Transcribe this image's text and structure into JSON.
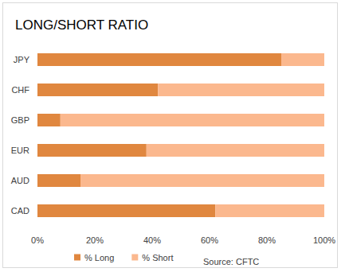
{
  "chart_data": {
    "type": "bar",
    "title": "LONG/SHORT RATIO",
    "orientation": "horizontal",
    "stacked": true,
    "categories": [
      "JPY",
      "CHF",
      "GBP",
      "EUR",
      "AUD",
      "CAD"
    ],
    "series": [
      {
        "name": "% Long",
        "color": "#e0873f",
        "values": [
          85,
          42,
          8,
          38,
          15,
          62
        ]
      },
      {
        "name": "% Short",
        "color": "#fbb88e",
        "values": [
          15,
          58,
          92,
          62,
          85,
          38
        ]
      }
    ],
    "xlim": [
      0,
      100
    ],
    "xticks": [
      {
        "value": 0,
        "label": "0%"
      },
      {
        "value": 20,
        "label": "20%"
      },
      {
        "value": 40,
        "label": "40%"
      },
      {
        "value": 60,
        "label": "60%"
      },
      {
        "value": 80,
        "label": "80%"
      },
      {
        "value": 100,
        "label": "100%"
      }
    ],
    "grid": false,
    "legend": "bottom",
    "annotations": [
      "Source: CFTC"
    ]
  }
}
